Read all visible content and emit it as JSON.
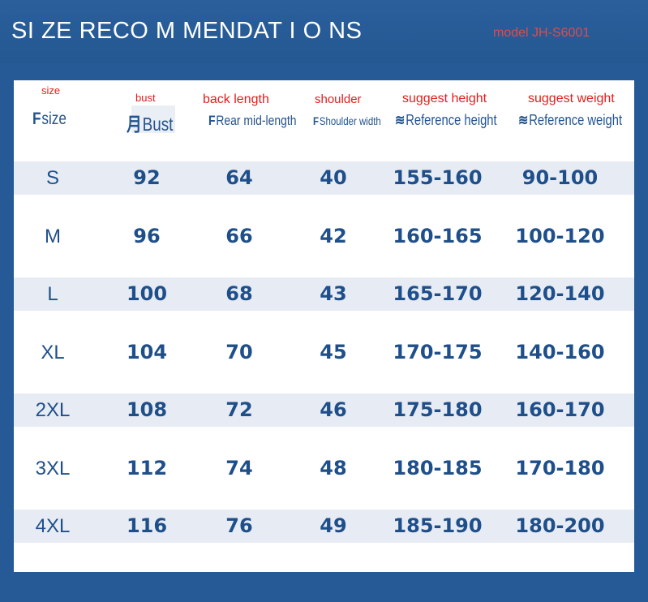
{
  "header": {
    "title": "SI ZE RECO M MENDAT I O NS",
    "model": "model JH-S6001"
  },
  "table": {
    "columns": [
      {
        "cn": "size",
        "en": "size",
        "mark": "F"
      },
      {
        "cn": "bust",
        "en": "Bust",
        "mark": "月"
      },
      {
        "cn": "back length",
        "en": "Rear mid-length",
        "mark": "F"
      },
      {
        "cn": "shoulder",
        "en": "Shoulder width",
        "mark": "F"
      },
      {
        "cn": "suggest height",
        "en": "Reference height",
        "mark": "≋"
      },
      {
        "cn": "suggest weight",
        "en": "Reference weight",
        "mark": "≋"
      }
    ],
    "rows": [
      {
        "size": "S",
        "bust": "92",
        "back": "64",
        "shoulder": "40",
        "height": "155-160",
        "weight": "90-100"
      },
      {
        "size": "M",
        "bust": "96",
        "back": "66",
        "shoulder": "42",
        "height": "160-165",
        "weight": "100-120"
      },
      {
        "size": "L",
        "bust": "100",
        "back": "68",
        "shoulder": "43",
        "height": "165-170",
        "weight": "120-140"
      },
      {
        "size": "XL",
        "bust": "104",
        "back": "70",
        "shoulder": "45",
        "height": "170-175",
        "weight": "140-160"
      },
      {
        "size": "2XL",
        "bust": "108",
        "back": "72",
        "shoulder": "46",
        "height": "175-180",
        "weight": "160-170"
      },
      {
        "size": "3XL",
        "bust": "112",
        "back": "74",
        "shoulder": "48",
        "height": "180-185",
        "weight": "170-180"
      },
      {
        "size": "4XL",
        "bust": "116",
        "back": "76",
        "shoulder": "49",
        "height": "185-190",
        "weight": "180-200"
      }
    ]
  },
  "colors": {
    "background": "#255a96",
    "card": "#ffffff",
    "row_shade": "#e7ecf4",
    "text": "#1f4f8a",
    "accent_red": "#e41c1c"
  }
}
